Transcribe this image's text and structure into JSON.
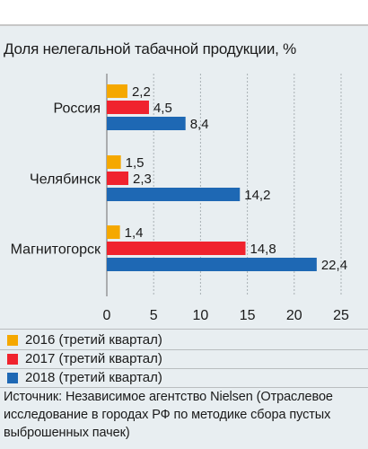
{
  "title": "Доля нелегальной табачной продукции, %",
  "source": "Источник: Независимое агентство Nielsen (Отраслевое исследование в городах РФ по методике сбора пустых выброшенных пачек)",
  "chart_data": {
    "type": "bar",
    "orientation": "horizontal",
    "title": "Доля нелегальной табачной продукции, %",
    "categories": [
      "Россия",
      "Челябинск",
      "Магнитогорск"
    ],
    "series": [
      {
        "name": "2016 (третий квартал)",
        "color": "#f5a800",
        "values": [
          2.2,
          1.5,
          1.4
        ],
        "labels": [
          "2,2",
          "1,5",
          "1,4"
        ]
      },
      {
        "name": "2017 (третий квартал)",
        "color": "#f0232e",
        "values": [
          4.5,
          2.3,
          14.8
        ],
        "labels": [
          "4,5",
          "2,3",
          "14,8"
        ]
      },
      {
        "name": "2018 (третий квартал)",
        "color": "#1e68b4",
        "values": [
          8.4,
          14.2,
          22.4
        ],
        "labels": [
          "8,4",
          "14,2",
          "22,4"
        ]
      }
    ],
    "x_ticks": [
      "0",
      "5",
      "10",
      "15",
      "20",
      "25"
    ],
    "xlim": [
      0,
      25
    ],
    "grid": true,
    "legend_placement": "bottom"
  }
}
